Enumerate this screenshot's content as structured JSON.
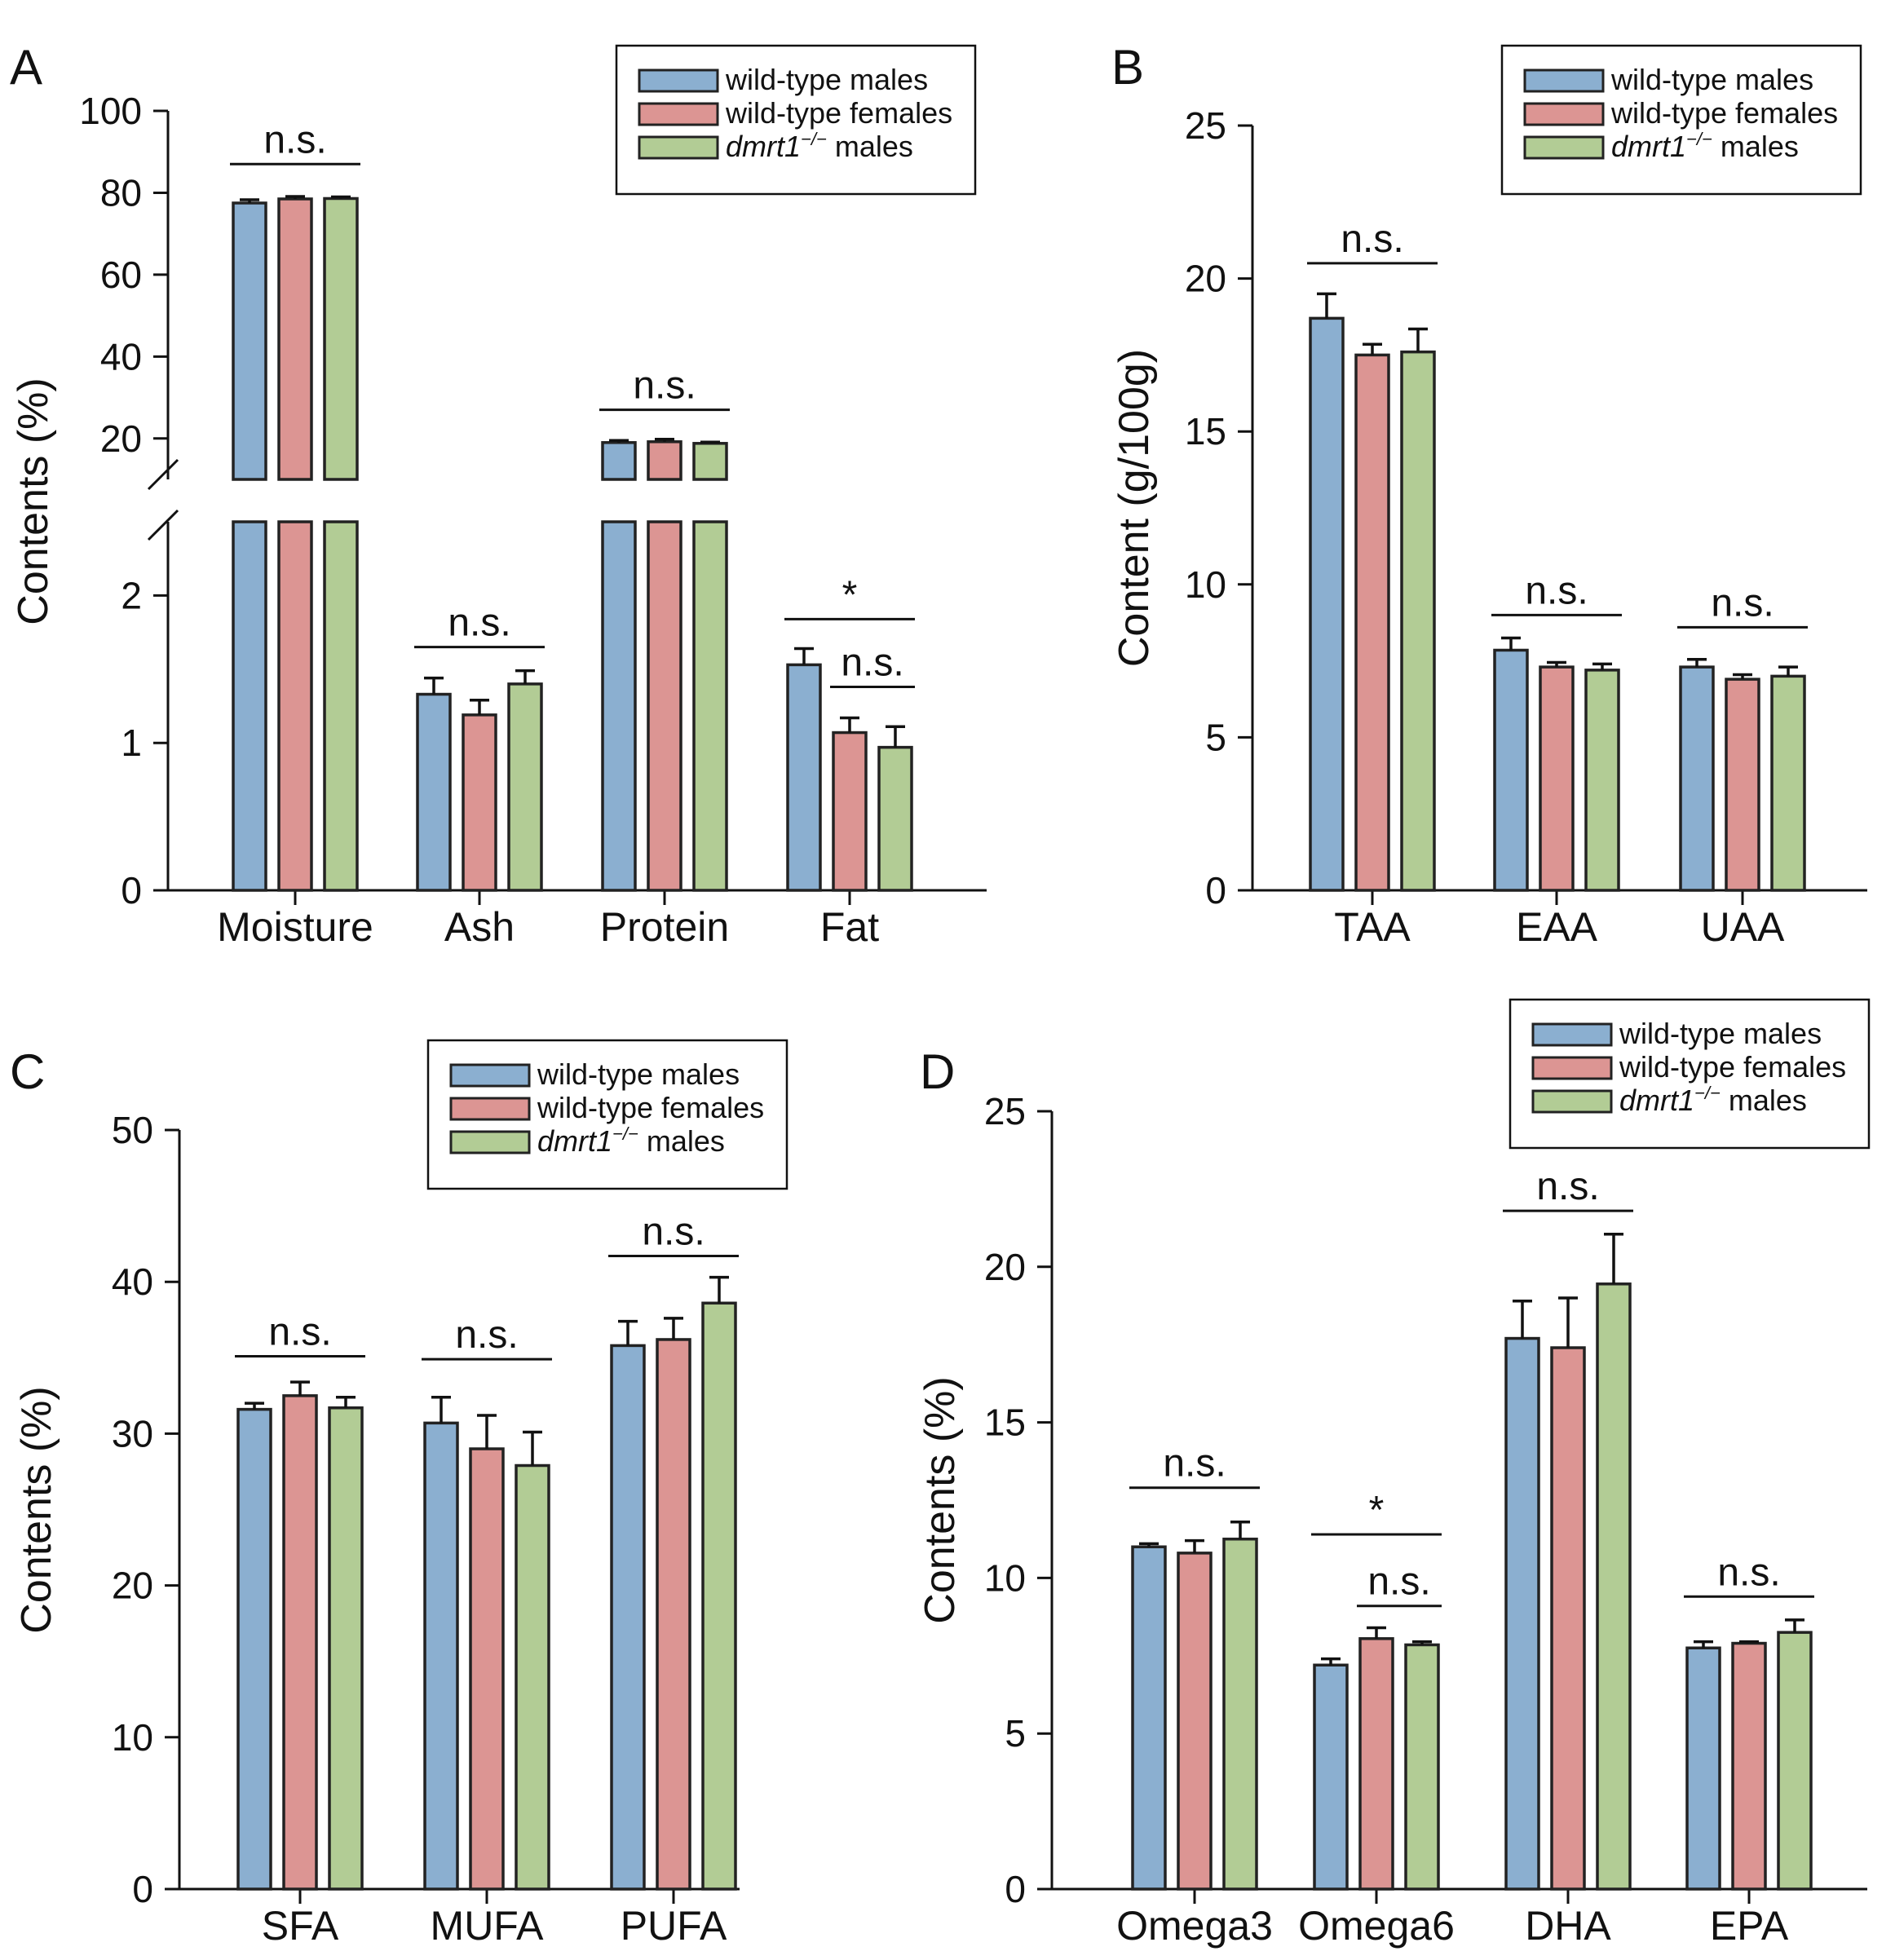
{
  "colors": {
    "wild_type_males": "#8bafd0",
    "wild_type_females": "#dc9593",
    "dmrt1_males": "#b2cc95"
  },
  "legend": {
    "entries": [
      {
        "name": "wild-type males",
        "italic_prefix": "",
        "suffix": "wild-type males",
        "sup": ""
      },
      {
        "name": "wild-type females",
        "italic_prefix": "",
        "suffix": "wild-type females",
        "sup": ""
      },
      {
        "name": "dmrt1-/- males",
        "italic_prefix": "dmrt1",
        "suffix": " males",
        "sup": "−/−"
      }
    ]
  },
  "chart_data": [
    {
      "panel": "A",
      "type": "bar",
      "title": "",
      "xlabel": "",
      "ylabel": "Contents (%)",
      "categories": [
        "Moisture",
        "Ash",
        "Protein",
        "Fat"
      ],
      "axis_break": {
        "lower_ylim": [
          0,
          2.5
        ],
        "upper_ylim": [
          10,
          100
        ]
      },
      "lower_yticks": [
        0,
        1,
        2
      ],
      "upper_yticks": [
        20,
        40,
        60,
        80,
        100
      ],
      "series": [
        {
          "name": "wild-type males",
          "values": [
            77.5,
            1.33,
            19.0,
            1.53
          ],
          "errors": [
            0.8,
            0.11,
            0.5,
            0.11
          ]
        },
        {
          "name": "wild-type females",
          "values": [
            78.5,
            1.19,
            19.2,
            1.07
          ],
          "errors": [
            0.6,
            0.1,
            0.6,
            0.1
          ]
        },
        {
          "name": "dmrt1-/- males",
          "values": [
            78.6,
            1.4,
            18.8,
            0.97
          ],
          "errors": [
            0.4,
            0.09,
            0.3,
            0.14
          ]
        }
      ],
      "annotations": [
        {
          "label": "n.s.",
          "from": [
            0,
            0
          ],
          "to": [
            0,
            2
          ],
          "segment": "upper",
          "level": 87
        },
        {
          "label": "n.s.",
          "from": [
            1,
            0
          ],
          "to": [
            1,
            2
          ],
          "segment": "lower",
          "level": 1.65
        },
        {
          "label": "n.s.",
          "from": [
            2,
            0
          ],
          "to": [
            2,
            2
          ],
          "segment": "upper",
          "level": 27
        },
        {
          "label": "*",
          "from": [
            3,
            0
          ],
          "to": [
            3,
            2
          ],
          "segment": "lower",
          "level": 1.84
        },
        {
          "label": "n.s.",
          "from": [
            3,
            1
          ],
          "to": [
            3,
            2
          ],
          "segment": "lower",
          "level": 1.38
        }
      ]
    },
    {
      "panel": "B",
      "type": "bar",
      "title": "",
      "xlabel": "",
      "ylabel": "Content (g/100g)",
      "categories": [
        "TAA",
        "EAA",
        "UAA"
      ],
      "ylim": [
        0,
        25
      ],
      "yticks": [
        0,
        5,
        10,
        15,
        20,
        25
      ],
      "series": [
        {
          "name": "wild-type males",
          "values": [
            18.7,
            7.85,
            7.3
          ],
          "errors": [
            0.8,
            0.4,
            0.25
          ]
        },
        {
          "name": "wild-type females",
          "values": [
            17.5,
            7.3,
            6.9
          ],
          "errors": [
            0.35,
            0.15,
            0.15
          ]
        },
        {
          "name": "dmrt1-/- males",
          "values": [
            17.6,
            7.2,
            7.0
          ],
          "errors": [
            0.75,
            0.2,
            0.3
          ]
        }
      ],
      "annotations": [
        {
          "label": "n.s.",
          "from": [
            0,
            0
          ],
          "to": [
            0,
            2
          ],
          "level": 20.5
        },
        {
          "label": "n.s.",
          "from": [
            1,
            0
          ],
          "to": [
            1,
            2
          ],
          "level": 9.0
        },
        {
          "label": "n.s.",
          "from": [
            2,
            0
          ],
          "to": [
            2,
            2
          ],
          "level": 8.6
        }
      ]
    },
    {
      "panel": "C",
      "type": "bar",
      "title": "",
      "xlabel": "",
      "ylabel": "Contents (%)",
      "categories": [
        "SFA",
        "MUFA",
        "PUFA"
      ],
      "ylim": [
        0,
        50
      ],
      "yticks": [
        0,
        10,
        20,
        30,
        40,
        50
      ],
      "series": [
        {
          "name": "wild-type males",
          "values": [
            31.6,
            30.7,
            35.8
          ],
          "errors": [
            0.4,
            1.7,
            1.6
          ]
        },
        {
          "name": "wild-type females",
          "values": [
            32.5,
            29.0,
            36.2
          ],
          "errors": [
            0.9,
            2.2,
            1.4
          ]
        },
        {
          "name": "dmrt1-/- males",
          "values": [
            31.7,
            27.9,
            38.6
          ],
          "errors": [
            0.7,
            2.2,
            1.7
          ]
        }
      ],
      "annotations": [
        {
          "label": "n.s.",
          "from": [
            0,
            0
          ],
          "to": [
            0,
            2
          ],
          "level": 35.1
        },
        {
          "label": "n.s.",
          "from": [
            1,
            0
          ],
          "to": [
            1,
            2
          ],
          "level": 34.9
        },
        {
          "label": "n.s.",
          "from": [
            2,
            0
          ],
          "to": [
            2,
            2
          ],
          "level": 41.7
        }
      ]
    },
    {
      "panel": "D",
      "type": "bar",
      "title": "",
      "xlabel": "",
      "ylabel": "Contents (%)",
      "categories": [
        "Omega3",
        "Omega6",
        "DHA",
        "EPA"
      ],
      "ylim": [
        0,
        25
      ],
      "yticks": [
        0,
        5,
        10,
        15,
        20,
        25
      ],
      "series": [
        {
          "name": "wild-type males",
          "values": [
            11.0,
            7.2,
            17.7,
            7.75
          ],
          "errors": [
            0.1,
            0.2,
            1.2,
            0.2
          ]
        },
        {
          "name": "wild-type females",
          "values": [
            10.8,
            8.05,
            17.4,
            7.9
          ],
          "errors": [
            0.4,
            0.35,
            1.6,
            0.05
          ]
        },
        {
          "name": "dmrt1-/- males",
          "values": [
            11.25,
            7.85,
            19.45,
            8.25
          ],
          "errors": [
            0.55,
            0.1,
            1.6,
            0.4
          ]
        }
      ],
      "annotations": [
        {
          "label": "n.s.",
          "from": [
            0,
            0
          ],
          "to": [
            0,
            2
          ],
          "level": 12.9
        },
        {
          "label": "*",
          "from": [
            1,
            0
          ],
          "to": [
            1,
            2
          ],
          "level": 11.4
        },
        {
          "label": "n.s.",
          "from": [
            1,
            1
          ],
          "to": [
            1,
            2
          ],
          "level": 9.1
        },
        {
          "label": "n.s.",
          "from": [
            2,
            0
          ],
          "to": [
            2,
            2
          ],
          "level": 21.8
        },
        {
          "label": "n.s.",
          "from": [
            3,
            0
          ],
          "to": [
            3,
            2
          ],
          "level": 9.4
        }
      ]
    }
  ]
}
